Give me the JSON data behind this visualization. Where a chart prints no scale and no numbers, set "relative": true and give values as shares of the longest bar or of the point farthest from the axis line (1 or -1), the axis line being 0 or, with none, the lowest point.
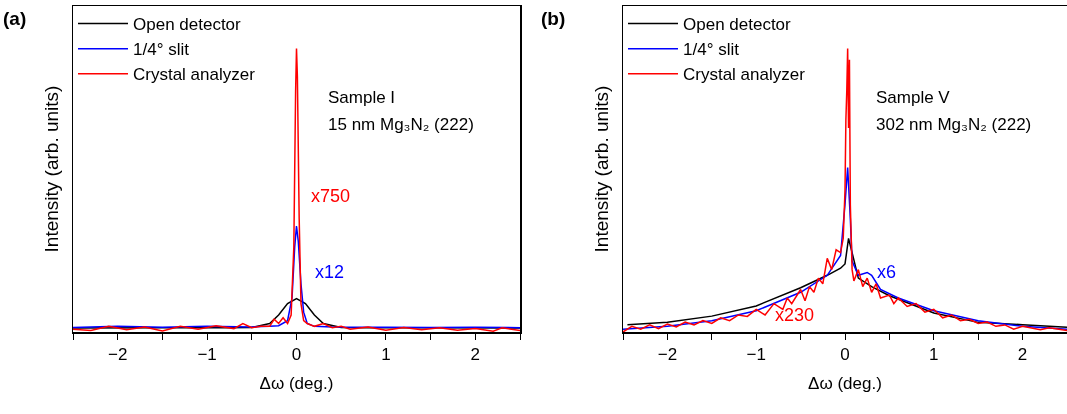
{
  "chart_data": [
    {
      "type": "line",
      "title": "(a)",
      "xlabel": "Δω (deg.)",
      "ylabel": "Intensity (arb. units)",
      "relative": true,
      "legend": "top left",
      "grid": false,
      "xlim": [
        -2.5,
        2.5
      ],
      "xticks": [
        {
          "value": -2.5,
          "label": null
        },
        -2,
        {
          "value": -1.5,
          "label": null
        },
        -1,
        {
          "value": -0.5,
          "label": null
        },
        0,
        {
          "value": 0.5,
          "label": null
        },
        1,
        {
          "value": 1.5,
          "label": null
        },
        2,
        {
          "value": 2.5,
          "label": null
        }
      ],
      "annotations": [
        "Sample I",
        "15 nm Mg₃N₂ (222)",
        {
          "text": "x750",
          "x": 0.05,
          "y": 0.48
        },
        {
          "text": "x12",
          "x": 0.1,
          "y": 0.21
        }
      ],
      "series": [
        {
          "name": "Open detector",
          "color": "#000000",
          "x": [
            -2.5,
            -1.5,
            -0.8,
            -0.5,
            -0.3,
            -0.2,
            -0.1,
            0,
            0.1,
            0.2,
            0.3,
            0.5,
            0.8,
            1.5,
            2.5
          ],
          "values": [
            0.014,
            0.015,
            0.015,
            0.016,
            0.03,
            0.06,
            0.1,
            0.118,
            0.1,
            0.06,
            0.03,
            0.016,
            0.015,
            0.015,
            0.014
          ]
        },
        {
          "name": "1/4° slit",
          "color": "#0000ff",
          "x": [
            -2.5,
            -2,
            -1.5,
            -1,
            -0.5,
            -0.3,
            -0.2,
            -0.1,
            -0.05,
            -0.02,
            0,
            0.02,
            0.05,
            0.08,
            0.12,
            0.2,
            0.4,
            1,
            1.5,
            2,
            2.5
          ],
          "values": [
            0.016,
            0.02,
            0.017,
            0.02,
            0.018,
            0.02,
            0.022,
            0.04,
            0.12,
            0.3,
            0.374,
            0.32,
            0.17,
            0.07,
            0.03,
            0.02,
            0.018,
            0.017,
            0.016,
            0.017,
            0.015
          ]
        },
        {
          "name": "Crystal analyzer",
          "color": "#ff0000",
          "x": [
            -2.5,
            -2.3,
            -2.1,
            -1.9,
            -1.7,
            -1.5,
            -1.3,
            -1.1,
            -0.9,
            -0.7,
            -0.6,
            -0.5,
            -0.4,
            -0.3,
            -0.25,
            -0.2,
            -0.15,
            -0.1,
            -0.06,
            -0.03,
            -0.01,
            0,
            0.01,
            0.03,
            0.05,
            0.08,
            0.12,
            0.2,
            0.3,
            0.4,
            0.5,
            0.6,
            0.8,
            1,
            1.2,
            1.4,
            1.6,
            1.8,
            2,
            2.2,
            2.3,
            2.5
          ],
          "values": [
            0.01,
            0.005,
            0.02,
            0.008,
            0.018,
            0.004,
            0.02,
            0.01,
            0.022,
            0.012,
            0.03,
            0.015,
            0.02,
            0.02,
            0.045,
            0.03,
            0.05,
            0.03,
            0.06,
            0.3,
            0.85,
            1,
            0.9,
            0.4,
            0.1,
            0.04,
            0.03,
            0.02,
            0.03,
            0.015,
            0.02,
            0.01,
            0.018,
            0.006,
            0.016,
            0.008,
            0.015,
            0.006,
            0.012,
            0.003,
            0.015,
            0.005
          ]
        }
      ]
    },
    {
      "type": "line",
      "title": "(b)",
      "xlabel": "Δω (deg.)",
      "ylabel": "Intensity (arb. units)",
      "relative": true,
      "legend": "top left",
      "grid": false,
      "xlim": [
        -2.5,
        2.5
      ],
      "xticks": [
        {
          "value": -2.5,
          "label": null
        },
        -2,
        {
          "value": -1.5,
          "label": null
        },
        -1,
        {
          "value": -0.5,
          "label": null
        },
        0,
        {
          "value": 0.5,
          "label": null
        },
        1,
        {
          "value": 1.5,
          "label": null
        },
        2,
        {
          "value": 2.5,
          "label": null
        }
      ],
      "annotations": [
        "Sample V",
        "302 nm Mg₃N₂ (222)",
        {
          "text": "x6",
          "x": 0.25,
          "y": 0.21
        },
        {
          "text": "x230",
          "x": -0.9,
          "y": 0.06
        }
      ],
      "series": [
        {
          "name": "Open detector",
          "color": "#000000",
          "x": [
            -2.45,
            -2,
            -1.5,
            -1,
            -0.5,
            -0.2,
            -0.05,
            0,
            0.04,
            0.08,
            0.15,
            0.3,
            0.5,
            1,
            1.5,
            2,
            2.5
          ],
          "values": [
            0.026,
            0.034,
            0.056,
            0.092,
            0.156,
            0.2,
            0.225,
            0.24,
            0.33,
            0.28,
            0.19,
            0.16,
            0.128,
            0.067,
            0.034,
            0.026,
            0.017
          ]
        },
        {
          "name": "1/4° slit",
          "color": "#0000ff",
          "x": [
            -2.5,
            -2,
            -1.5,
            -1,
            -0.5,
            -0.2,
            -0.05,
            0,
            0.03,
            0.06,
            0.08,
            0.15,
            0.25,
            0.3,
            0.4,
            0.6,
            1,
            1.5,
            2,
            2.5
          ],
          "values": [
            0.01,
            0.02,
            0.04,
            0.075,
            0.14,
            0.2,
            0.27,
            0.45,
            0.58,
            0.4,
            0.25,
            0.2,
            0.21,
            0.2,
            0.15,
            0.12,
            0.075,
            0.04,
            0.02,
            0.01
          ]
        },
        {
          "name": "Crystal analyzer",
          "color": "#ff0000",
          "x": [
            -2.5,
            -2.4,
            -2.3,
            -2.2,
            -2.1,
            -2,
            -1.9,
            -1.8,
            -1.7,
            -1.6,
            -1.5,
            -1.4,
            -1.3,
            -1.2,
            -1.1,
            -1,
            -0.9,
            -0.8,
            -0.7,
            -0.65,
            -0.6,
            -0.5,
            -0.45,
            -0.4,
            -0.35,
            -0.3,
            -0.25,
            -0.2,
            -0.15,
            -0.1,
            -0.05,
            -0.02,
            0,
            0.01,
            0.02,
            0.03,
            0.04,
            0.05,
            0.06,
            0.08,
            0.1,
            0.15,
            0.2,
            0.25,
            0.3,
            0.35,
            0.4,
            0.5,
            0.55,
            0.6,
            0.7,
            0.8,
            0.9,
            1,
            1.1,
            1.2,
            1.3,
            1.4,
            1.5,
            1.6,
            1.7,
            1.8,
            1.9,
            2,
            2.2,
            2.3,
            2.5
          ],
          "values": [
            0,
            0.02,
            0.01,
            0.025,
            0.012,
            0.028,
            0.018,
            0.035,
            0.025,
            0.04,
            0.03,
            0.05,
            0.04,
            0.06,
            0.055,
            0.08,
            0.06,
            0.1,
            0.08,
            0.12,
            0.1,
            0.15,
            0.11,
            0.16,
            0.14,
            0.19,
            0.17,
            0.26,
            0.22,
            0.29,
            0.28,
            0.33,
            0.5,
            0.75,
            0.85,
            1,
            0.72,
            0.96,
            0.45,
            0.22,
            0.18,
            0.22,
            0.16,
            0.19,
            0.14,
            0.17,
            0.12,
            0.13,
            0.1,
            0.12,
            0.09,
            0.1,
            0.07,
            0.08,
            0.05,
            0.06,
            0.04,
            0.045,
            0.03,
            0.035,
            0.02,
            0.025,
            0.01,
            0.02,
            0.008,
            0.015,
            0.005
          ]
        }
      ]
    }
  ]
}
